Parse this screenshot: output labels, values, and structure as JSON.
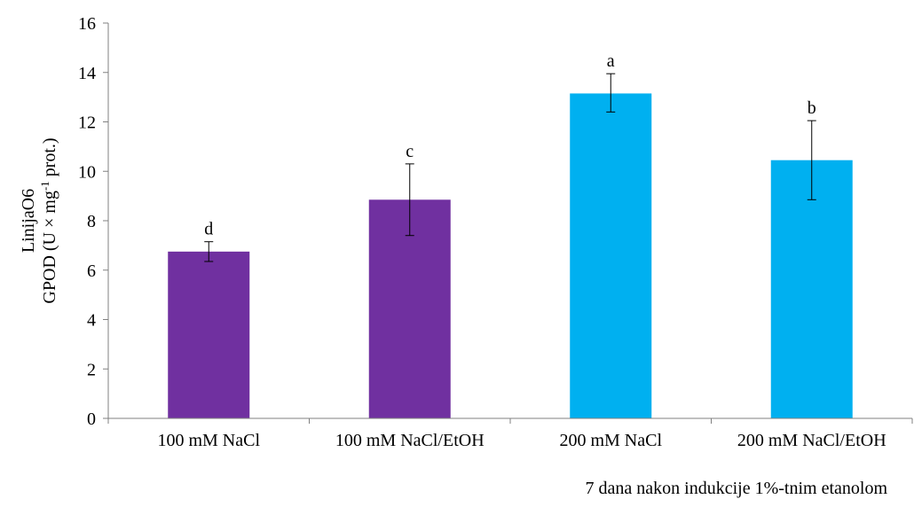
{
  "chart_data": {
    "type": "bar",
    "categories": [
      "100 mM NaCl",
      "100 mM NaCl/EtOH",
      "200 mM NaCl",
      "200 mM NaCl/EtOH"
    ],
    "values": [
      6.75,
      8.85,
      13.15,
      10.45
    ],
    "error_low": [
      6.35,
      7.4,
      12.4,
      8.85
    ],
    "error_high": [
      7.15,
      10.3,
      13.95,
      12.05
    ],
    "significance_labels": [
      "d",
      "c",
      "a",
      "b"
    ],
    "bar_colors": [
      "#7030A0",
      "#7030A0",
      "#00B0F0",
      "#00B0F0"
    ],
    "ylabel_line1": "LinijaO6",
    "ylabel_line2_parts": [
      "GPOD (U × mg",
      "-1",
      " prot.)"
    ],
    "xlabel": "7 dana nakon indukcije 1%-tnim etanolom",
    "ylim": [
      0,
      16
    ],
    "yticks": [
      0,
      2,
      4,
      6,
      8,
      10,
      12,
      14,
      16
    ],
    "grid": false,
    "legend": "none"
  }
}
